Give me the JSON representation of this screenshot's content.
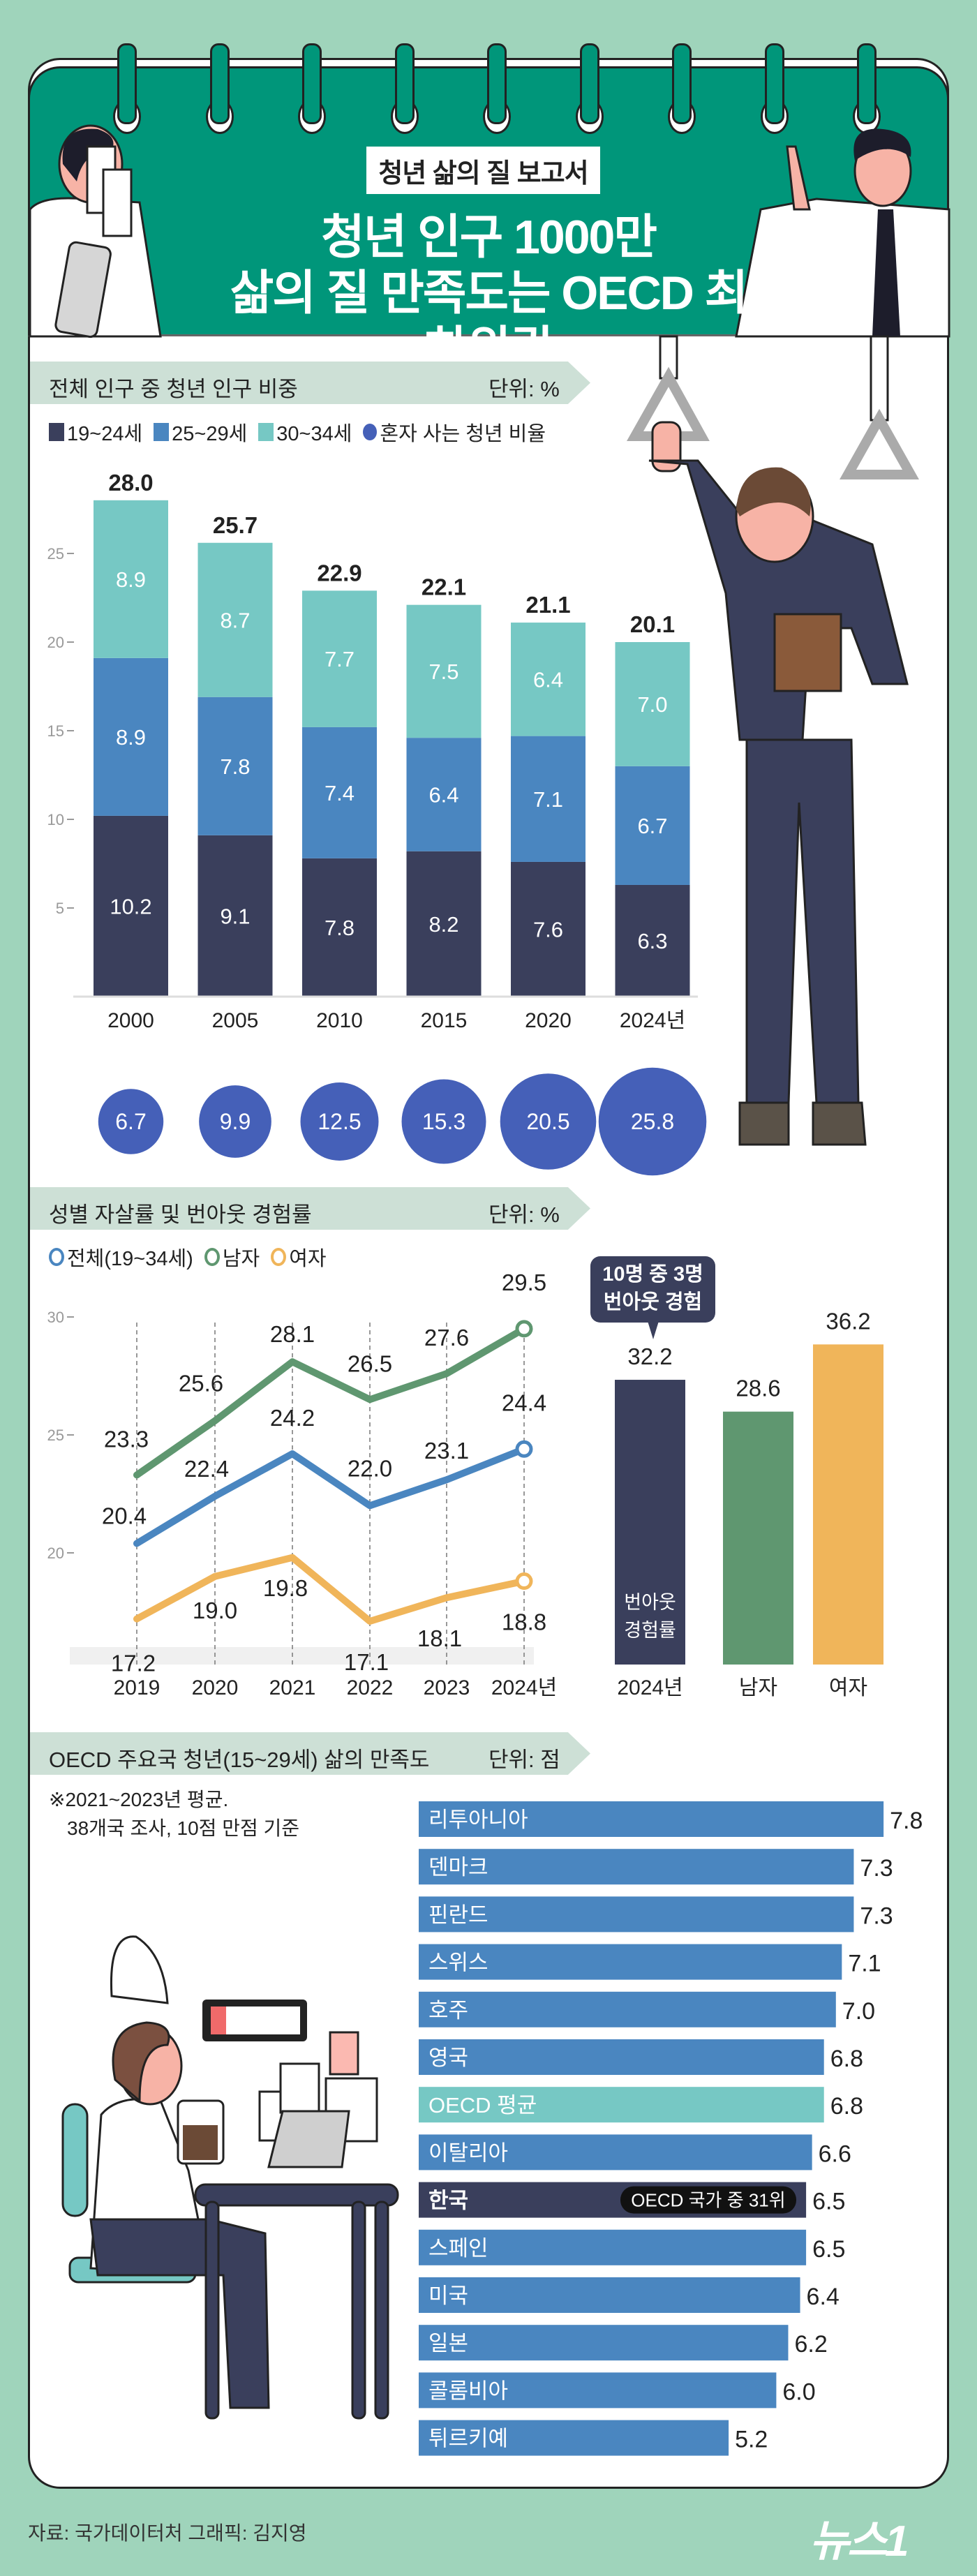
{
  "header": {
    "tag": "청년 삶의 질 보고서",
    "title_line1": "청년 인구 1000만",
    "title_line2": "삶의 질 만족도는 OECD 최하위권"
  },
  "colors": {
    "background": "#9fd4bb",
    "header_green": "#00967a",
    "navy": "#3a3f5c",
    "blue": "#4a86c0",
    "teal": "#76c8c4",
    "circle_blue": "#4560b8",
    "green": "#5f9770",
    "orange": "#f0b55a"
  },
  "chart_data": [
    {
      "type": "bar",
      "stacked": true,
      "title": "전체 인구 중 청년 인구 비중",
      "unit": "단위: %",
      "categories": [
        "2000",
        "2005",
        "2010",
        "2015",
        "2020",
        "2024년"
      ],
      "series": [
        {
          "name": "19~24세",
          "values": [
            10.2,
            9.1,
            7.8,
            8.2,
            7.6,
            6.3
          ],
          "color": "#3a3f5c"
        },
        {
          "name": "25~29세",
          "values": [
            8.9,
            7.8,
            7.4,
            6.4,
            7.1,
            6.7
          ],
          "color": "#4a86c0"
        },
        {
          "name": "30~34세",
          "values": [
            8.9,
            8.7,
            7.7,
            7.5,
            6.4,
            7.0
          ],
          "color": "#76c8c4"
        }
      ],
      "totals": [
        "28.0",
        "25.7",
        "22.9",
        "22.1",
        "21.1",
        "20.1"
      ],
      "yticks": [
        5,
        10,
        15,
        20,
        25
      ],
      "ylim": [
        0,
        28
      ],
      "bubble_series": {
        "name": "혼자 사는 청년 비율",
        "values": [
          6.7,
          9.9,
          12.5,
          15.3,
          20.5,
          25.8
        ],
        "color": "#4560b8"
      }
    },
    {
      "type": "line",
      "title": "성별 자살률 및 번아웃 경험률",
      "unit": "단위: %",
      "categories": [
        "2019",
        "2020",
        "2021",
        "2022",
        "2023",
        "2024년"
      ],
      "series": [
        {
          "name": "전체(19~34세)",
          "values": [
            20.4,
            22.4,
            24.2,
            22.0,
            23.1,
            24.4
          ],
          "color": "#4a86c0"
        },
        {
          "name": "남자",
          "values": [
            23.3,
            25.6,
            28.1,
            26.5,
            27.6,
            29.5
          ],
          "color": "#5f9770"
        },
        {
          "name": "여자",
          "values": [
            17.2,
            19.0,
            19.8,
            17.1,
            18.1,
            18.8
          ],
          "color": "#f0b55a"
        }
      ],
      "yticks": [
        20,
        25,
        30
      ],
      "ylim": [
        15.5,
        31
      ]
    },
    {
      "type": "bar",
      "categories": [
        "2024년",
        "남자",
        "여자"
      ],
      "values": [
        32.2,
        28.6,
        36.2
      ],
      "colors": [
        "#3a3f5c",
        "#5f9770",
        "#f0b55a"
      ],
      "inner_label": "번아웃 경험률",
      "callout": [
        "10명 중 3명",
        "번아웃 경험"
      ],
      "ylim": [
        0,
        36.2
      ]
    },
    {
      "type": "bar",
      "orientation": "horizontal",
      "title": "OECD 주요국 청년(15~29세) 삶의 만족도",
      "unit": "단위: 점",
      "note": [
        "※2021~2023년 평균.",
        "38개국 조사, 10점 만점 기준"
      ],
      "categories": [
        "리투아니아",
        "덴마크",
        "핀란드",
        "스위스",
        "호주",
        "영국",
        "OECD 평균",
        "이탈리아",
        "한국",
        "스페인",
        "미국",
        "일본",
        "콜롬비아",
        "튀르키예"
      ],
      "values": [
        7.8,
        7.3,
        7.3,
        7.1,
        7.0,
        6.8,
        6.8,
        6.6,
        6.5,
        6.5,
        6.4,
        6.2,
        6.0,
        5.2
      ],
      "labels": [
        "7.8",
        "7.3",
        "7.3",
        "7.1",
        "7.0",
        "6.8",
        "6.8",
        "6.6",
        "6.5",
        "6.5",
        "6.4",
        "6.2",
        "6.0",
        "5.2"
      ],
      "highlight": {
        "한국": "OECD 국가 중 31위"
      },
      "xlim": [
        0,
        7.8
      ]
    }
  ],
  "footer": {
    "source": "자료: 국가데이터처   그래픽: 김지영",
    "logo": "뉴스1"
  }
}
